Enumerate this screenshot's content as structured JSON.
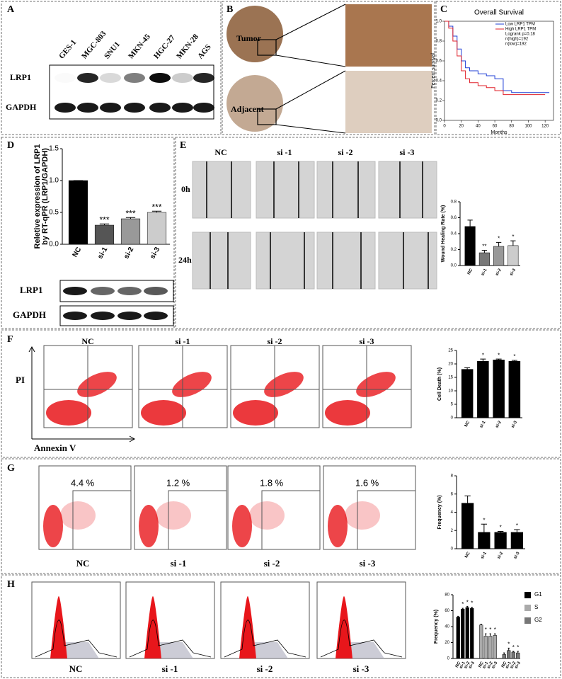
{
  "panels": [
    "A",
    "B",
    "C",
    "D",
    "E",
    "F",
    "G",
    "H"
  ],
  "blot_a": {
    "lanes": [
      "GES-1",
      "MGC-803",
      "SNU1",
      "MKN-45",
      "HGC-27",
      "MKN-28",
      "AGS"
    ],
    "rows": [
      "LRP1",
      "GAPDH"
    ]
  },
  "ihc": {
    "rows": [
      "Tumor",
      "Adjacent"
    ]
  },
  "blot_d": {
    "rows": [
      "LRP1",
      "GAPDH"
    ]
  },
  "wound": {
    "columns": [
      "NC",
      "si -1",
      "si -2",
      "si -3"
    ],
    "rows": [
      "0h",
      "24h"
    ]
  },
  "apoptosis": {
    "columns": [
      "NC",
      "si -1",
      "si -2",
      "si -3"
    ],
    "y_axis": "PI",
    "x_axis": "Annexin V"
  },
  "gate": {
    "columns": [
      "NC",
      "si -1",
      "si -2",
      "si -3"
    ],
    "percents": [
      "4.4 %",
      "1.2 %",
      "1.8 %",
      "1.6 %"
    ]
  },
  "cycle": {
    "columns": [
      "NC",
      "si -1",
      "si -2",
      "si -3"
    ]
  },
  "chart_data": [
    {
      "type": "line",
      "title": "Overall Survival",
      "xlabel": "Months",
      "ylabel": "Percent survival",
      "annotations": [
        "Logrank p=0.18",
        "n(high)=192",
        "n(low)=192"
      ],
      "xlim": [
        0,
        130
      ],
      "ylim": [
        0,
        1.0
      ],
      "xticks": [
        0,
        20,
        40,
        60,
        80,
        100,
        120
      ],
      "yticks": [
        {
          "value": 0,
          "label": "0.0"
        },
        {
          "value": 0.2,
          "label": "0.2"
        },
        {
          "value": 0.4,
          "label": "0.4"
        },
        {
          "value": 0.6,
          "label": "0.6"
        },
        {
          "value": 0.8,
          "label": "0.8"
        },
        {
          "value": 1.0,
          "label": "1.0"
        }
      ],
      "series": [
        {
          "name": "Low LRP1 TPM",
          "color": "#1f3fd6",
          "x": [
            0,
            5,
            10,
            15,
            20,
            25,
            30,
            40,
            50,
            60,
            70,
            80,
            100,
            125
          ],
          "values": [
            1.0,
            0.95,
            0.85,
            0.72,
            0.6,
            0.53,
            0.5,
            0.47,
            0.45,
            0.42,
            0.3,
            0.28,
            0.28,
            0.28
          ]
        },
        {
          "name": "High LRP1 TPM",
          "color": "#e0202a",
          "x": [
            0,
            5,
            10,
            15,
            20,
            25,
            30,
            40,
            50,
            60,
            70,
            80,
            100,
            120
          ],
          "values": [
            1.0,
            0.93,
            0.8,
            0.65,
            0.5,
            0.42,
            0.38,
            0.35,
            0.33,
            0.3,
            0.26,
            0.26,
            0.26,
            0.26
          ]
        }
      ]
    },
    {
      "type": "bar",
      "ylabel": [
        "Reletive expression of LRP1",
        "by RT-qPR (LRP1/GAPDH)"
      ],
      "categories": [
        "NC",
        "si-1",
        "si-2",
        "si-3"
      ],
      "values": [
        1.0,
        0.3,
        0.4,
        0.5
      ],
      "error": [
        0.0,
        0.02,
        0.02,
        0.02
      ],
      "colors": [
        "#000000",
        "#555555",
        "#999999",
        "#cccccc"
      ],
      "annotations": [
        null,
        "***",
        "***",
        "***"
      ],
      "ylim": [
        0,
        1.5
      ],
      "yticks": [
        {
          "value": 0,
          "label": "0.0"
        },
        {
          "value": 0.5,
          "label": "0.5"
        },
        {
          "value": 1.0,
          "label": "1.0"
        },
        {
          "value": 1.5,
          "label": "1.5"
        }
      ]
    },
    {
      "type": "bar",
      "ylabel": [
        "Wound Healing Rate (%)"
      ],
      "categories": [
        "NC",
        "si-1",
        "si-2",
        "si-3"
      ],
      "values": [
        0.49,
        0.16,
        0.24,
        0.25
      ],
      "error": [
        0.08,
        0.03,
        0.05,
        0.06
      ],
      "colors": [
        "#000000",
        "#777777",
        "#999999",
        "#cccccc"
      ],
      "annotations": [
        null,
        "**",
        "*",
        "*"
      ],
      "ylim": [
        0,
        0.8
      ],
      "yticks": [
        {
          "value": 0,
          "label": "0.0"
        },
        0.2,
        0.4,
        0.6,
        0.8
      ]
    },
    {
      "type": "bar",
      "ylabel": [
        "Cell Death (%)"
      ],
      "categories": [
        "NC",
        "si-1",
        "si-2",
        "si-3"
      ],
      "values": [
        18,
        21,
        21.5,
        21
      ],
      "error": [
        0.6,
        0.8,
        0.3,
        0.3
      ],
      "colors": [
        "#000000",
        "#000000",
        "#000000",
        "#000000"
      ],
      "annotations": [
        null,
        "*",
        "*",
        "*"
      ],
      "ylim": [
        0,
        25
      ],
      "yticks": [
        0,
        5,
        10,
        15,
        20,
        25
      ]
    },
    {
      "type": "bar",
      "ylabel": [
        "Frequency (%)"
      ],
      "categories": [
        "NC",
        "si-1",
        "si-2",
        "si-3"
      ],
      "values": [
        5,
        1.8,
        1.8,
        1.8
      ],
      "error": [
        0.8,
        0.9,
        0.1,
        0.3
      ],
      "colors": [
        "#000000",
        "#000000",
        "#000000",
        "#000000"
      ],
      "annotations": [
        null,
        "*",
        "*",
        "*"
      ],
      "ylim": [
        0,
        8
      ],
      "yticks": [
        0,
        2,
        4,
        6,
        8
      ]
    },
    {
      "type": "grouped_bar",
      "ylabel": [
        "Frequency (%)"
      ],
      "categories": [
        "NC",
        "si-1",
        "si-2",
        "si-3"
      ],
      "series": [
        {
          "name": "G1",
          "color": "#000000",
          "values": [
            52,
            62,
            64,
            63
          ],
          "error": [
            1,
            1,
            1.5,
            1.5
          ],
          "annotations": [
            null,
            "*",
            "*",
            "*"
          ]
        },
        {
          "name": "S",
          "color": "#aaaaaa",
          "values": [
            42,
            28,
            28,
            29
          ],
          "error": [
            1,
            3,
            3,
            2
          ],
          "annotations": [
            null,
            "*",
            "*",
            "*"
          ]
        },
        {
          "name": "G2",
          "color": "#777777",
          "values": [
            5,
            10,
            8,
            7
          ],
          "error": [
            2,
            3,
            1,
            2
          ],
          "annotations": [
            null,
            "*",
            "*",
            "*"
          ]
        }
      ],
      "ylim": [
        0,
        80
      ],
      "yticks": [
        0,
        20,
        40,
        60,
        80
      ],
      "legend": "upper right"
    }
  ]
}
